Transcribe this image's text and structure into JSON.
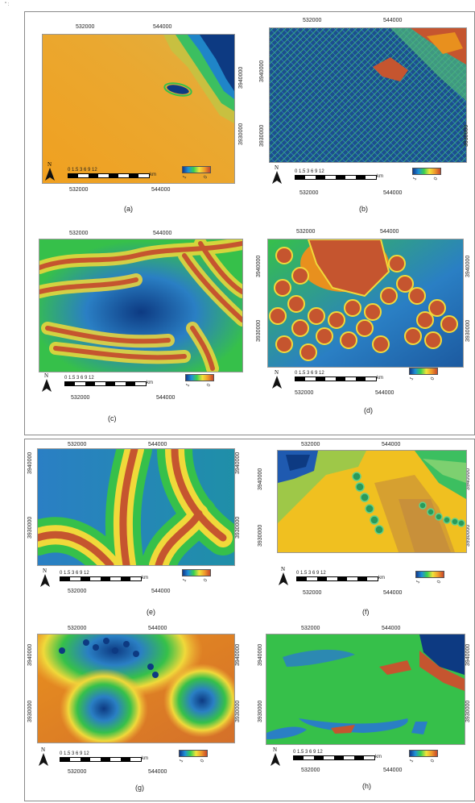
{
  "corner_mark": "\" :",
  "coords": {
    "x_left": "532000",
    "x_right": "544000",
    "y_top": "3940000",
    "y_bottom": "3930000"
  },
  "scale": {
    "ticks": "0   1.5  3      6       9      12",
    "unit": "km"
  },
  "north_label": "N",
  "legend_lo": "1",
  "legend_hi": "0",
  "captions": [
    "(a)",
    "(b)",
    "(c)",
    "(d)",
    "(e)",
    "(f)",
    "(g)",
    "(h)"
  ],
  "colors": {
    "dark_blue": "#0d3a82",
    "blue": "#2a7fc4",
    "green": "#36c04a",
    "yellow": "#f0d93a",
    "orange": "#e8901e",
    "red_brown": "#c5552f"
  }
}
